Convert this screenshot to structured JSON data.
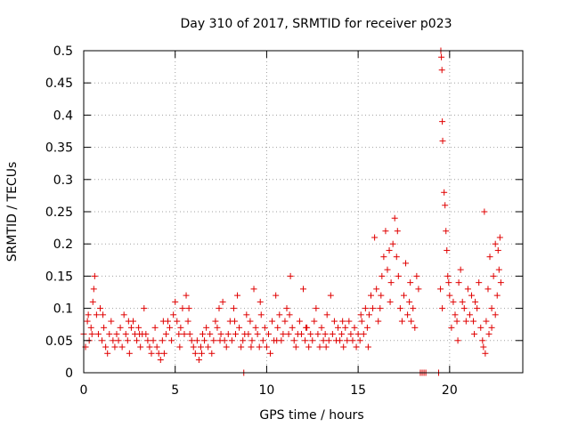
{
  "chart_data": {
    "type": "scatter",
    "title": "Day 310 of 2017, SRMTID for receiver p023",
    "xlabel": "GPS time / hours",
    "ylabel": "SRMTID / TECUs",
    "xlim": [
      0,
      24
    ],
    "ylim": [
      0,
      0.5
    ],
    "xticks": [
      0,
      5,
      10,
      15,
      20
    ],
    "xtick_labels": [
      "0",
      "5",
      "10",
      "15",
      "20"
    ],
    "yticks": [
      0,
      0.05,
      0.1,
      0.15,
      0.2,
      0.25,
      0.3,
      0.35,
      0.4,
      0.45,
      0.5
    ],
    "ytick_labels": [
      "0",
      "0.05",
      "0.1",
      "0.15",
      "0.2",
      "0.25",
      "0.3",
      "0.35",
      "0.4",
      "0.45",
      "0.5"
    ],
    "grid": true,
    "marker": "+",
    "marker_color": "#e00000",
    "series": [
      {
        "name": "SRMTID",
        "points": [
          [
            0.0,
            0.06
          ],
          [
            0.1,
            0.04
          ],
          [
            0.2,
            0.08
          ],
          [
            0.3,
            0.05
          ],
          [
            0.4,
            0.07
          ],
          [
            0.5,
            0.11
          ],
          [
            0.55,
            0.13
          ],
          [
            0.6,
            0.15
          ],
          [
            0.7,
            0.09
          ],
          [
            0.8,
            0.06
          ],
          [
            0.9,
            0.1
          ],
          [
            1.0,
            0.05
          ],
          [
            1.1,
            0.07
          ],
          [
            1.2,
            0.04
          ],
          [
            1.3,
            0.03
          ],
          [
            1.4,
            0.06
          ],
          [
            1.5,
            0.08
          ],
          [
            1.6,
            0.05
          ],
          [
            1.7,
            0.04
          ],
          [
            1.8,
            0.06
          ],
          [
            1.9,
            0.05
          ],
          [
            2.0,
            0.07
          ],
          [
            2.1,
            0.04
          ],
          [
            2.2,
            0.09
          ],
          [
            2.3,
            0.06
          ],
          [
            2.4,
            0.05
          ],
          [
            2.5,
            0.03
          ],
          [
            2.6,
            0.07
          ],
          [
            2.7,
            0.08
          ],
          [
            2.8,
            0.06
          ],
          [
            2.9,
            0.05
          ],
          [
            3.0,
            0.07
          ],
          [
            3.1,
            0.04
          ],
          [
            3.2,
            0.06
          ],
          [
            3.3,
            0.1
          ],
          [
            3.4,
            0.06
          ],
          [
            3.5,
            0.05
          ],
          [
            3.6,
            0.04
          ],
          [
            3.7,
            0.03
          ],
          [
            3.8,
            0.05
          ],
          [
            3.9,
            0.07
          ],
          [
            4.0,
            0.04
          ],
          [
            4.1,
            0.03
          ],
          [
            4.2,
            0.02
          ],
          [
            4.3,
            0.05
          ],
          [
            4.4,
            0.03
          ],
          [
            4.5,
            0.06
          ],
          [
            4.6,
            0.08
          ],
          [
            4.7,
            0.07
          ],
          [
            4.8,
            0.05
          ],
          [
            4.9,
            0.09
          ],
          [
            5.0,
            0.11
          ],
          [
            5.1,
            0.08
          ],
          [
            5.2,
            0.06
          ],
          [
            5.3,
            0.07
          ],
          [
            5.4,
            0.1
          ],
          [
            5.5,
            0.06
          ],
          [
            5.6,
            0.12
          ],
          [
            5.7,
            0.08
          ],
          [
            5.8,
            0.06
          ],
          [
            5.9,
            0.05
          ],
          [
            6.0,
            0.04
          ],
          [
            6.1,
            0.03
          ],
          [
            6.2,
            0.05
          ],
          [
            6.3,
            0.02
          ],
          [
            6.4,
            0.04
          ],
          [
            6.5,
            0.06
          ],
          [
            6.6,
            0.05
          ],
          [
            6.7,
            0.07
          ],
          [
            6.8,
            0.04
          ],
          [
            6.9,
            0.06
          ],
          [
            7.0,
            0.03
          ],
          [
            7.1,
            0.05
          ],
          [
            7.2,
            0.08
          ],
          [
            7.3,
            0.07
          ],
          [
            7.4,
            0.1
          ],
          [
            7.5,
            0.06
          ],
          [
            7.6,
            0.11
          ],
          [
            7.7,
            0.05
          ],
          [
            7.8,
            0.04
          ],
          [
            7.9,
            0.06
          ],
          [
            8.0,
            0.08
          ],
          [
            8.1,
            0.05
          ],
          [
            8.2,
            0.1
          ],
          [
            8.3,
            0.06
          ],
          [
            8.4,
            0.12
          ],
          [
            8.5,
            0.07
          ],
          [
            8.6,
            0.04
          ],
          [
            8.7,
            0.05
          ],
          [
            8.8,
            0.06
          ],
          [
            8.9,
            0.09
          ],
          [
            9.0,
            0.06
          ],
          [
            9.1,
            0.08
          ],
          [
            9.2,
            0.05
          ],
          [
            9.3,
            0.13
          ],
          [
            9.4,
            0.07
          ],
          [
            9.5,
            0.06
          ],
          [
            9.6,
            0.04
          ],
          [
            9.7,
            0.09
          ],
          [
            9.8,
            0.05
          ],
          [
            9.9,
            0.07
          ],
          [
            10.0,
            0.04
          ],
          [
            10.1,
            0.06
          ],
          [
            10.2,
            0.03
          ],
          [
            10.3,
            0.08
          ],
          [
            10.4,
            0.05
          ],
          [
            10.5,
            0.12
          ],
          [
            10.6,
            0.07
          ],
          [
            10.7,
            0.09
          ],
          [
            10.8,
            0.05
          ],
          [
            10.9,
            0.06
          ],
          [
            11.0,
            0.08
          ],
          [
            11.1,
            0.1
          ],
          [
            11.2,
            0.06
          ],
          [
            11.3,
            0.15
          ],
          [
            11.4,
            0.07
          ],
          [
            11.5,
            0.05
          ],
          [
            11.6,
            0.04
          ],
          [
            11.7,
            0.06
          ],
          [
            11.8,
            0.08
          ],
          [
            11.9,
            0.06
          ],
          [
            12.0,
            0.13
          ],
          [
            12.1,
            0.05
          ],
          [
            12.2,
            0.07
          ],
          [
            12.3,
            0.04
          ],
          [
            12.4,
            0.06
          ],
          [
            12.5,
            0.05
          ],
          [
            12.6,
            0.08
          ],
          [
            12.7,
            0.1
          ],
          [
            12.8,
            0.06
          ],
          [
            12.9,
            0.04
          ],
          [
            13.0,
            0.07
          ],
          [
            13.1,
            0.05
          ],
          [
            13.2,
            0.06
          ],
          [
            13.3,
            0.09
          ],
          [
            13.4,
            0.05
          ],
          [
            13.5,
            0.12
          ],
          [
            13.6,
            0.06
          ],
          [
            13.7,
            0.08
          ],
          [
            13.8,
            0.05
          ],
          [
            13.9,
            0.07
          ],
          [
            14.0,
            0.05
          ],
          [
            14.1,
            0.06
          ],
          [
            14.2,
            0.04
          ],
          [
            14.3,
            0.07
          ],
          [
            14.4,
            0.05
          ],
          [
            14.5,
            0.08
          ],
          [
            14.6,
            0.06
          ],
          [
            14.7,
            0.05
          ],
          [
            14.8,
            0.07
          ],
          [
            14.9,
            0.04
          ],
          [
            15.0,
            0.06
          ],
          [
            15.1,
            0.05
          ],
          [
            15.2,
            0.08
          ],
          [
            15.3,
            0.06
          ],
          [
            15.4,
            0.1
          ],
          [
            15.5,
            0.07
          ],
          [
            15.6,
            0.09
          ],
          [
            15.7,
            0.12
          ],
          [
            15.8,
            0.1
          ],
          [
            15.9,
            0.21
          ],
          [
            16.0,
            0.13
          ],
          [
            16.1,
            0.08
          ],
          [
            16.2,
            0.1
          ],
          [
            16.3,
            0.15
          ],
          [
            16.4,
            0.18
          ],
          [
            16.5,
            0.22
          ],
          [
            16.6,
            0.16
          ],
          [
            16.7,
            0.19
          ],
          [
            16.8,
            0.14
          ],
          [
            16.9,
            0.2
          ],
          [
            17.0,
            0.24
          ],
          [
            17.1,
            0.18
          ],
          [
            17.2,
            0.15
          ],
          [
            17.3,
            0.1
          ],
          [
            17.4,
            0.08
          ],
          [
            17.5,
            0.12
          ],
          [
            17.6,
            0.17
          ],
          [
            17.7,
            0.09
          ],
          [
            17.8,
            0.11
          ],
          [
            17.9,
            0.08
          ],
          [
            18.0,
            0.1
          ],
          [
            18.1,
            0.07
          ],
          [
            18.2,
            0.15
          ],
          [
            18.3,
            0.13
          ],
          [
            18.4,
            0.0
          ],
          [
            18.5,
            0.0
          ],
          [
            18.6,
            0.0
          ],
          [
            18.7,
            0.0
          ],
          [
            19.4,
            0.0
          ],
          [
            19.5,
            0.13
          ],
          [
            19.6,
            0.1
          ],
          [
            19.7,
            0.28
          ],
          [
            19.75,
            0.26
          ],
          [
            19.8,
            0.22
          ],
          [
            19.85,
            0.19
          ],
          [
            19.6,
            0.39
          ],
          [
            19.62,
            0.36
          ],
          [
            19.55,
            0.49
          ],
          [
            19.58,
            0.47
          ],
          [
            19.52,
            0.5
          ],
          [
            19.9,
            0.15
          ],
          [
            20.0,
            0.12
          ],
          [
            20.1,
            0.07
          ],
          [
            20.2,
            0.11
          ],
          [
            20.3,
            0.09
          ],
          [
            20.4,
            0.08
          ],
          [
            20.5,
            0.14
          ],
          [
            20.6,
            0.16
          ],
          [
            20.7,
            0.11
          ],
          [
            20.8,
            0.1
          ],
          [
            20.9,
            0.08
          ],
          [
            21.0,
            0.13
          ],
          [
            21.1,
            0.09
          ],
          [
            21.2,
            0.12
          ],
          [
            21.3,
            0.08
          ],
          [
            21.4,
            0.11
          ],
          [
            21.5,
            0.1
          ],
          [
            21.6,
            0.14
          ],
          [
            21.7,
            0.07
          ],
          [
            21.8,
            0.05
          ],
          [
            21.85,
            0.04
          ],
          [
            21.9,
            0.25
          ],
          [
            21.95,
            0.03
          ],
          [
            22.0,
            0.08
          ],
          [
            22.1,
            0.13
          ],
          [
            22.2,
            0.18
          ],
          [
            22.3,
            0.1
          ],
          [
            22.4,
            0.15
          ],
          [
            22.5,
            0.2
          ],
          [
            22.6,
            0.12
          ],
          [
            22.7,
            0.16
          ],
          [
            22.75,
            0.21
          ],
          [
            22.5,
            0.09
          ],
          [
            22.8,
            0.14
          ],
          [
            22.3,
            0.07
          ],
          [
            0.25,
            0.09
          ],
          [
            0.45,
            0.06
          ],
          [
            1.05,
            0.09
          ],
          [
            2.45,
            0.08
          ],
          [
            3.05,
            0.06
          ],
          [
            4.35,
            0.08
          ],
          [
            5.25,
            0.04
          ],
          [
            5.75,
            0.1
          ],
          [
            6.45,
            0.03
          ],
          [
            7.45,
            0.05
          ],
          [
            8.25,
            0.08
          ],
          [
            9.15,
            0.04
          ],
          [
            9.65,
            0.11
          ],
          [
            10.55,
            0.05
          ],
          [
            11.25,
            0.09
          ],
          [
            12.15,
            0.07
          ],
          [
            13.25,
            0.04
          ],
          [
            14.15,
            0.08
          ],
          [
            15.15,
            0.09
          ],
          [
            15.55,
            0.04
          ],
          [
            16.25,
            0.12
          ],
          [
            16.75,
            0.11
          ],
          [
            17.15,
            0.22
          ],
          [
            17.85,
            0.14
          ],
          [
            19.95,
            0.14
          ],
          [
            20.45,
            0.05
          ],
          [
            21.35,
            0.06
          ],
          [
            22.15,
            0.06
          ],
          [
            22.65,
            0.19
          ],
          [
            8.75,
            0.0
          ]
        ]
      }
    ]
  }
}
